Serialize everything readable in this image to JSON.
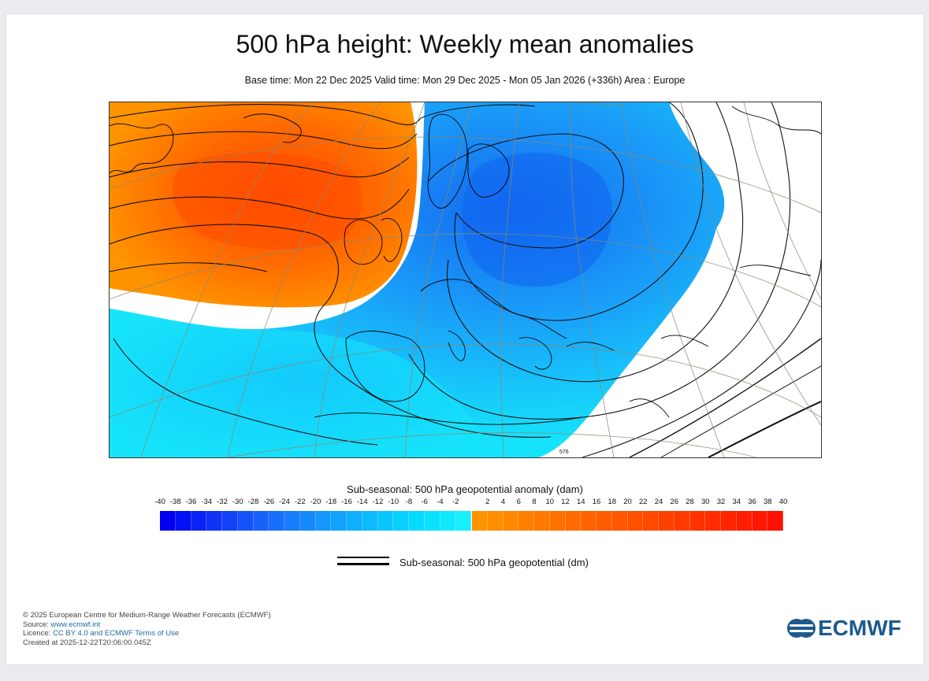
{
  "title": "500 hPa height: Weekly mean anomalies",
  "subtitle": "Base time: Mon 22 Dec 2025 Valid time: Mon 29 Dec 2025 - Mon 05 Jan 2026 (+336h) Area : Europe",
  "map": {
    "region": "Europe",
    "contour_label": "576"
  },
  "legend": {
    "title": "Sub-seasonal: 500 hPa geopotential anomaly (dam)",
    "negative_ticks": [
      "-40",
      "-38",
      "-36",
      "-34",
      "-32",
      "-30",
      "-28",
      "-26",
      "-24",
      "-22",
      "-20",
      "-18",
      "-16",
      "-14",
      "-12",
      "-10",
      "-8",
      "-6",
      "-4",
      "-2"
    ],
    "positive_ticks": [
      "2",
      "4",
      "6",
      "8",
      "10",
      "12",
      "14",
      "16",
      "18",
      "20",
      "22",
      "24",
      "26",
      "28",
      "30",
      "32",
      "34",
      "36",
      "38",
      "40"
    ],
    "negative_colors": [
      "#0000f0",
      "#0611f3",
      "#0b22f5",
      "#1033f6",
      "#1343f7",
      "#1552f8",
      "#1761f9",
      "#186ffa",
      "#187dfb",
      "#178afb",
      "#1597fc",
      "#13a3fc",
      "#10affd",
      "#0dbbfd",
      "#0ac6fd",
      "#08d0fd",
      "#08dafd",
      "#0ae2fd",
      "#10e9fd",
      "#18effd"
    ],
    "positive_colors": [
      "#ff9400",
      "#ff8e00",
      "#ff8700",
      "#ff8000",
      "#ff7900",
      "#ff7200",
      "#ff6b00",
      "#ff6400",
      "#ff5d00",
      "#ff5600",
      "#ff4f00",
      "#ff4800",
      "#ff4100",
      "#ff3a00",
      "#ff3300",
      "#ff2c00",
      "#ff2500",
      "#ff1e00",
      "#ff1700",
      "#ff1000"
    ],
    "line_label": "Sub-seasonal: 500 hPa geopotential (dm)"
  },
  "footer": {
    "copyright": "© 2025 European Centre for Medium-Range Weather Forecasts (ECMWF)",
    "source_prefix": "Source: ",
    "source_link": "www.ecmwf.int",
    "licence_prefix": "Licence: ",
    "licence_link": "CC BY 4.0 and ECMWF Terms of Use",
    "created": "Created at 2025-12-22T20:06:00.045Z"
  },
  "logo": {
    "text": "ECMWF",
    "color": "#1d5a8e"
  }
}
